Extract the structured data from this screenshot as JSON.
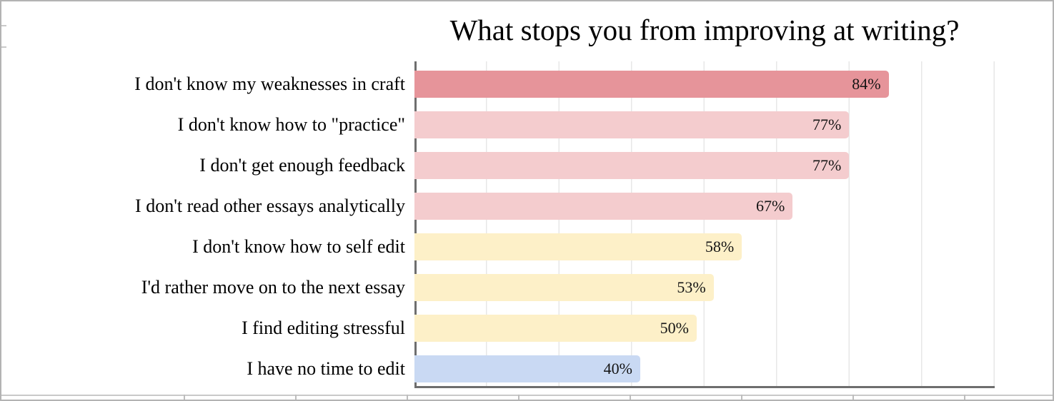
{
  "window": {
    "background_color": "#ffffff",
    "frame_border_color": "#b3b3b3",
    "sheet_gridline_color": "#c9c9c9"
  },
  "chart_data": {
    "type": "bar",
    "orientation": "horizontal",
    "title": "What stops you from improving at writing?",
    "categories": [
      "I don't know my weaknesses in craft",
      "I don't know how to \"practice\"",
      "I don't get enough feedback",
      "I don't read other essays analytically",
      "I don't know how to self edit",
      "I'd rather move on to the next essay",
      "I find editing stressful",
      "I have no time to edit"
    ],
    "values": [
      84,
      77,
      77,
      67,
      58,
      53,
      50,
      40
    ],
    "value_suffix": "%",
    "bar_colors": [
      "#e6949a",
      "#f4ccce",
      "#f4ccce",
      "#f4ccce",
      "#fdf0c8",
      "#fdf0c8",
      "#fdf0c8",
      "#c9d9f3"
    ],
    "xlabel": "",
    "ylabel": "",
    "xlim": [
      0,
      100
    ],
    "grid": "vertical-only",
    "legend": "none",
    "axis_line_color": "#6e6e6e",
    "gridline_color": "#e7e7e7",
    "value_labels_position": "inside-end"
  }
}
